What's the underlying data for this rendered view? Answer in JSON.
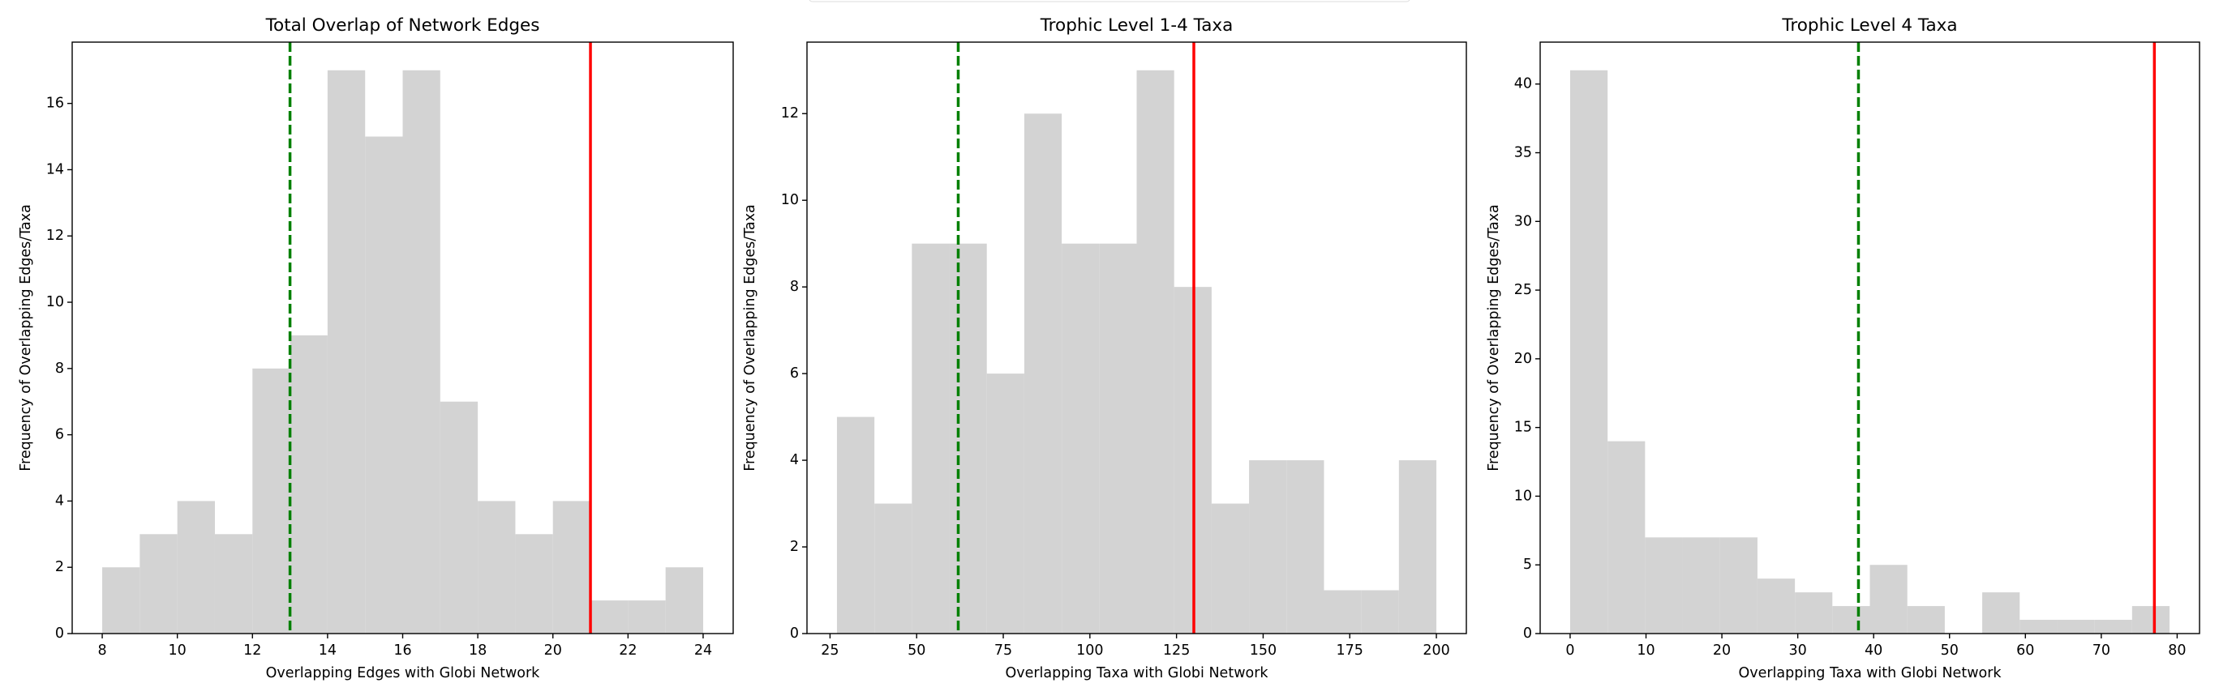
{
  "chart_data": [
    {
      "type": "histogram",
      "title": "Total Overlap of Network Edges",
      "xlabel": "Overlapping Edges with Globi Network",
      "ylabel": "Frequency of Overlapping Edges/Taxa",
      "bins": [
        8,
        9,
        10,
        11,
        12,
        13,
        14,
        15,
        16,
        17,
        18,
        19,
        20,
        21,
        22,
        23,
        24
      ],
      "values": [
        2,
        3,
        4,
        3,
        8,
        9,
        17,
        15,
        17,
        7,
        4,
        3,
        4,
        1,
        1,
        2
      ],
      "color": "#d3d3d3",
      "xlim": [
        7.2,
        24.8
      ],
      "xticks": [
        8,
        10,
        12,
        14,
        16,
        18,
        20,
        22,
        24
      ],
      "ylim": [
        0,
        17.85
      ],
      "yticks": [
        0,
        2,
        4,
        6,
        8,
        10,
        12,
        14,
        16
      ],
      "vlines": [
        {
          "x": 13,
          "color": "green",
          "style": "dashed"
        },
        {
          "x": 21,
          "color": "red",
          "style": "solid"
        }
      ]
    },
    {
      "type": "histogram",
      "title": "Trophic Level 1-4 Taxa",
      "xlabel": "Overlapping Taxa with Globi Network",
      "ylabel": "Frequency of Overlapping Edges/Taxa",
      "bins": [
        27,
        37.8125,
        48.625,
        59.4375,
        70.25,
        81.0625,
        91.875,
        102.6875,
        113.5,
        124.3125,
        135.125,
        145.9375,
        156.75,
        167.5625,
        178.375,
        189.1875,
        200
      ],
      "values": [
        5,
        3,
        9,
        9,
        6,
        12,
        9,
        9,
        13,
        8,
        3,
        4,
        4,
        1,
        1,
        4
      ],
      "color": "#d3d3d3",
      "xlim": [
        18.35,
        208.65
      ],
      "xticks": [
        25,
        50,
        75,
        100,
        125,
        150,
        175,
        200
      ],
      "ylim": [
        0,
        13.65
      ],
      "yticks": [
        0,
        2,
        4,
        6,
        8,
        10,
        12
      ],
      "vlines": [
        {
          "x": 62,
          "color": "green",
          "style": "dashed"
        },
        {
          "x": 130,
          "color": "red",
          "style": "solid"
        }
      ]
    },
    {
      "type": "histogram",
      "title": "Trophic Level 4 Taxa",
      "xlabel": "Overlapping Taxa with Globi Network",
      "ylabel": "Frequency of Overlapping Edges/Taxa",
      "bins": [
        0,
        4.9375,
        9.875,
        14.8125,
        19.75,
        24.6875,
        29.625,
        34.5625,
        39.5,
        44.4375,
        49.375,
        54.3125,
        59.25,
        64.1875,
        69.125,
        74.0625,
        79
      ],
      "values": [
        41,
        14,
        7,
        7,
        7,
        4,
        3,
        2,
        5,
        2,
        0,
        3,
        1,
        1,
        1,
        2
      ],
      "color": "#d3d3d3",
      "xlim": [
        -3.95,
        82.95
      ],
      "xticks": [
        0,
        10,
        20,
        30,
        40,
        50,
        60,
        70,
        80
      ],
      "ylim": [
        0,
        43.05
      ],
      "yticks": [
        0,
        5,
        10,
        15,
        20,
        25,
        30,
        35,
        40
      ],
      "vlines": [
        {
          "x": 38,
          "color": "green",
          "style": "dashed"
        },
        {
          "x": 77,
          "color": "red",
          "style": "solid"
        }
      ]
    }
  ]
}
